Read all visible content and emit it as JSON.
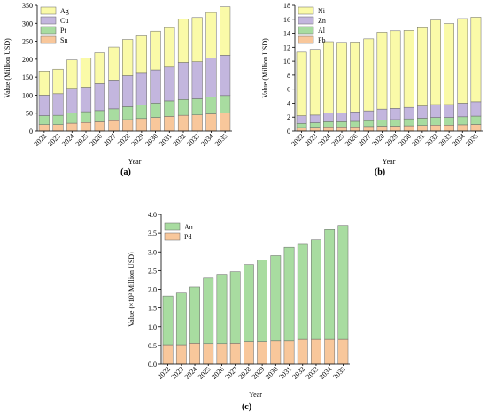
{
  "chart_data": [
    {
      "type": "bar",
      "stacked": true,
      "panel_label": "(a)",
      "categories": [
        "2022",
        "2023",
        "2024",
        "2025",
        "2026",
        "2027",
        "2028",
        "2029",
        "2030",
        "2031",
        "2032",
        "2033",
        "2034",
        "2035"
      ],
      "series": [
        {
          "name": "Sn",
          "color": "#f8c79b",
          "values": [
            18,
            18,
            22,
            24,
            26,
            29,
            32,
            35,
            38,
            41,
            44,
            45,
            48,
            50
          ]
        },
        {
          "name": "Pt",
          "color": "#a8dca0",
          "values": [
            25,
            26,
            29,
            30,
            31,
            33,
            36,
            38,
            40,
            43,
            44,
            45,
            47,
            49
          ]
        },
        {
          "name": "Cu",
          "color": "#c3b6de",
          "values": [
            57,
            60,
            68,
            68,
            75,
            80,
            86,
            90,
            92,
            94,
            103,
            103,
            108,
            112
          ]
        },
        {
          "name": "Ag",
          "color": "#fafaa8",
          "values": [
            67,
            68,
            79,
            81,
            86,
            92,
            101,
            102,
            108,
            110,
            121,
            123,
            127,
            135
          ]
        }
      ],
      "title": "",
      "xlabel": "Year",
      "ylabel": "Value (Million USD)",
      "ylim": [
        0,
        350
      ],
      "yticks": [
        0,
        50,
        100,
        150,
        200,
        250,
        300,
        350
      ],
      "legend_order": [
        "Ag",
        "Cu",
        "Pt",
        "Sn"
      ],
      "legend": "top-left",
      "grid": false
    },
    {
      "type": "bar",
      "stacked": true,
      "panel_label": "(b)",
      "categories": [
        "2022",
        "2023",
        "2024",
        "2025",
        "2026",
        "2027",
        "2028",
        "2029",
        "2030",
        "2031",
        "2032",
        "2033",
        "2034",
        "2035"
      ],
      "series": [
        {
          "name": "Pb",
          "color": "#f8c79b",
          "values": [
            0.5,
            0.55,
            0.6,
            0.6,
            0.6,
            0.65,
            0.7,
            0.7,
            0.75,
            0.8,
            0.85,
            0.85,
            0.9,
            0.95
          ]
        },
        {
          "name": "Al",
          "color": "#a8dca0",
          "values": [
            0.6,
            0.65,
            0.75,
            0.75,
            0.8,
            0.85,
            0.9,
            0.95,
            1.0,
            1.05,
            1.1,
            1.1,
            1.15,
            1.2
          ]
        },
        {
          "name": "Zn",
          "color": "#c3b6de",
          "values": [
            1.1,
            1.1,
            1.25,
            1.25,
            1.35,
            1.4,
            1.55,
            1.6,
            1.65,
            1.75,
            1.85,
            1.85,
            1.95,
            2.05
          ]
        },
        {
          "name": "Ni",
          "color": "#fafaa8",
          "values": [
            9.1,
            9.4,
            10.2,
            10.1,
            10.0,
            10.3,
            11.0,
            11.1,
            11.0,
            11.2,
            12.1,
            11.6,
            12.1,
            12.1
          ]
        }
      ],
      "title": "",
      "xlabel": "Year",
      "ylabel": "Value (Million USD)",
      "ylim": [
        0,
        18
      ],
      "yticks": [
        0,
        2,
        4,
        6,
        8,
        10,
        12,
        14,
        16,
        18
      ],
      "legend_order": [
        "Ni",
        "Zn",
        "Al",
        "Pb"
      ],
      "legend": "top-left",
      "grid": false
    },
    {
      "type": "bar",
      "stacked": true,
      "panel_label": "(c)",
      "categories": [
        "2022",
        "2023",
        "2024",
        "2025",
        "2026",
        "2027",
        "2028",
        "2029",
        "2030",
        "2031",
        "2032",
        "2033",
        "2034",
        "2035"
      ],
      "series": [
        {
          "name": "Pd",
          "color": "#f8c79b",
          "values": [
            0.52,
            0.52,
            0.56,
            0.55,
            0.55,
            0.56,
            0.6,
            0.6,
            0.62,
            0.62,
            0.66,
            0.66,
            0.66,
            0.66
          ]
        },
        {
          "name": "Au",
          "color": "#a8dca0",
          "values": [
            1.3,
            1.38,
            1.5,
            1.75,
            1.85,
            1.91,
            2.06,
            2.18,
            2.28,
            2.5,
            2.56,
            2.66,
            2.93,
            3.04
          ]
        }
      ],
      "title": "",
      "xlabel": "Year",
      "ylabel": "Value (×10³ Million USD)",
      "ylim": [
        0,
        4.0
      ],
      "yticks": [
        "0.0",
        "0.5",
        "1.0",
        "1.5",
        "2.0",
        "2.5",
        "3.0",
        "3.5",
        "4.0"
      ],
      "legend_order": [
        "Au",
        "Pd"
      ],
      "legend": "top-left",
      "grid": false
    }
  ]
}
